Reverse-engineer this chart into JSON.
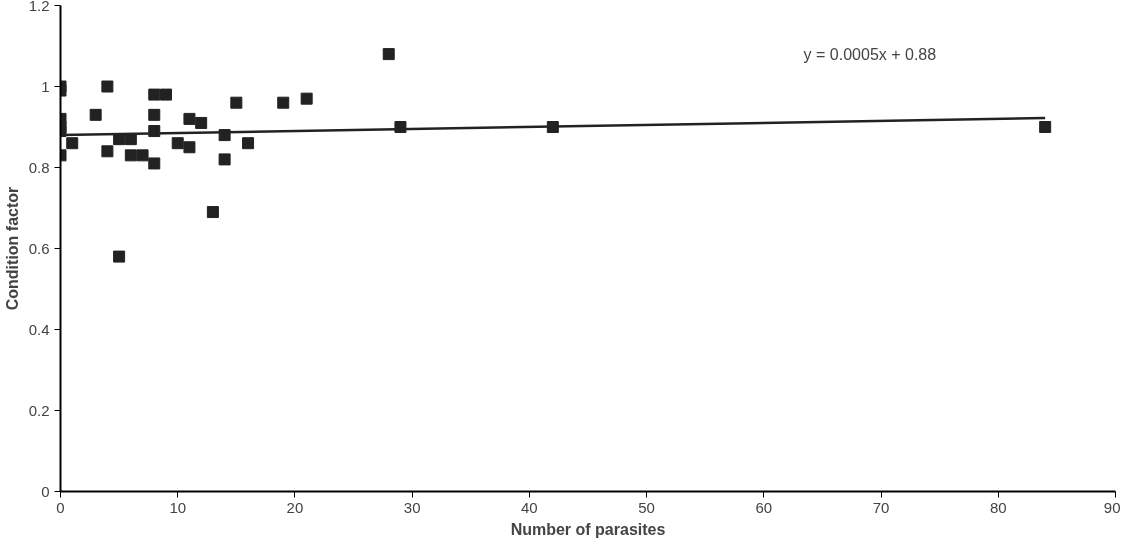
{
  "chart_data": {
    "type": "scatter",
    "xlabel": "Number of parasites",
    "ylabel": "Condition factor",
    "xlim": [
      0,
      90
    ],
    "xticks": [
      0,
      10,
      20,
      30,
      40,
      50,
      60,
      70,
      80,
      90
    ],
    "ylim": [
      0,
      1.2
    ],
    "yticks": [
      0,
      0.2,
      0.4,
      0.6,
      0.8,
      1,
      1.2
    ],
    "grid": false,
    "annotations": [
      "y = 0.0005x + 0.88"
    ],
    "series": [
      {
        "marker": "square",
        "color": "#222222",
        "x": [
          0,
          0,
          0,
          0,
          0,
          0,
          1,
          3,
          4,
          4,
          5,
          5,
          6,
          6,
          7,
          8,
          8,
          8,
          8,
          9,
          10,
          11,
          11,
          12,
          13,
          14,
          14,
          15,
          16,
          19,
          21,
          28,
          29,
          42,
          84
        ],
        "values": [
          1.0,
          0.99,
          0.92,
          0.9,
          0.89,
          0.83,
          0.86,
          0.93,
          1.0,
          0.84,
          0.58,
          0.87,
          0.87,
          0.83,
          0.83,
          0.98,
          0.93,
          0.89,
          0.81,
          0.98,
          0.86,
          0.92,
          0.85,
          0.91,
          0.69,
          0.88,
          0.82,
          0.96,
          0.86,
          0.96,
          0.97,
          1.08,
          0.9,
          0.9,
          0.9
        ]
      },
      {
        "type": "line",
        "color": "#222222",
        "x": [
          0,
          84
        ],
        "values": [
          0.88,
          0.922
        ]
      }
    ]
  }
}
